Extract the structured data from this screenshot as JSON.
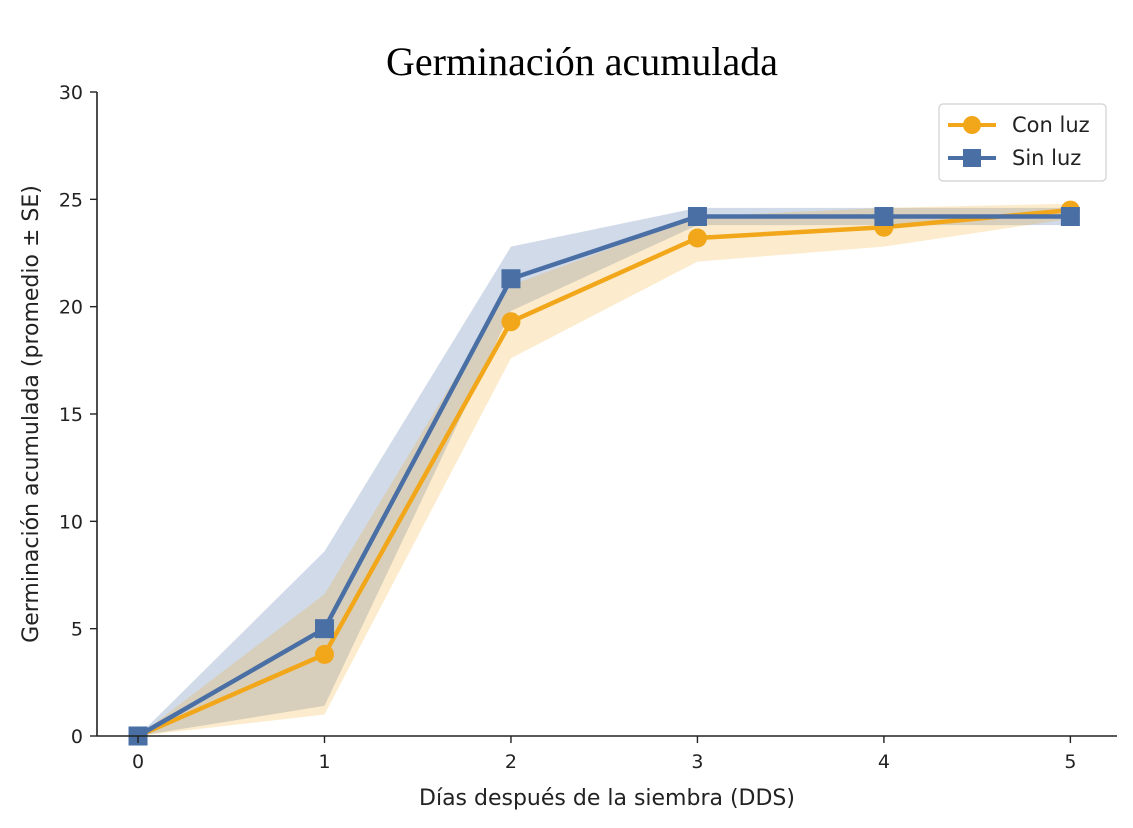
{
  "chart_data": {
    "type": "line",
    "title": "Germinación acumulada",
    "xlabel": "Días después de la siembra (DDS)",
    "ylabel": "Germinación acumulada (promedio ± SE)",
    "x": [
      0,
      1,
      2,
      3,
      4,
      5
    ],
    "x_ticks": [
      "0",
      "1",
      "2",
      "3",
      "4",
      "5"
    ],
    "y_ticks": [
      "0",
      "5",
      "10",
      "15",
      "20",
      "25",
      "30"
    ],
    "xlim": [
      -0.22,
      5.25
    ],
    "ylim": [
      0,
      30
    ],
    "grid": false,
    "legend_position": "top-right",
    "series": [
      {
        "name": "Con luz",
        "marker": "circle",
        "color": "#F2A71B",
        "values": [
          0,
          3.8,
          19.3,
          23.2,
          23.7,
          24.5
        ],
        "lower": [
          0,
          1.0,
          17.6,
          22.1,
          22.8,
          24.1
        ],
        "upper": [
          0,
          6.6,
          21.0,
          24.2,
          24.6,
          24.8
        ]
      },
      {
        "name": "Sin luz",
        "marker": "square",
        "color": "#4A6FA5",
        "values": [
          0,
          5.0,
          21.3,
          24.2,
          24.2,
          24.2
        ],
        "lower": [
          0,
          1.4,
          19.8,
          23.8,
          23.8,
          23.8
        ],
        "upper": [
          0,
          8.6,
          22.8,
          24.6,
          24.6,
          24.6
        ]
      }
    ]
  }
}
